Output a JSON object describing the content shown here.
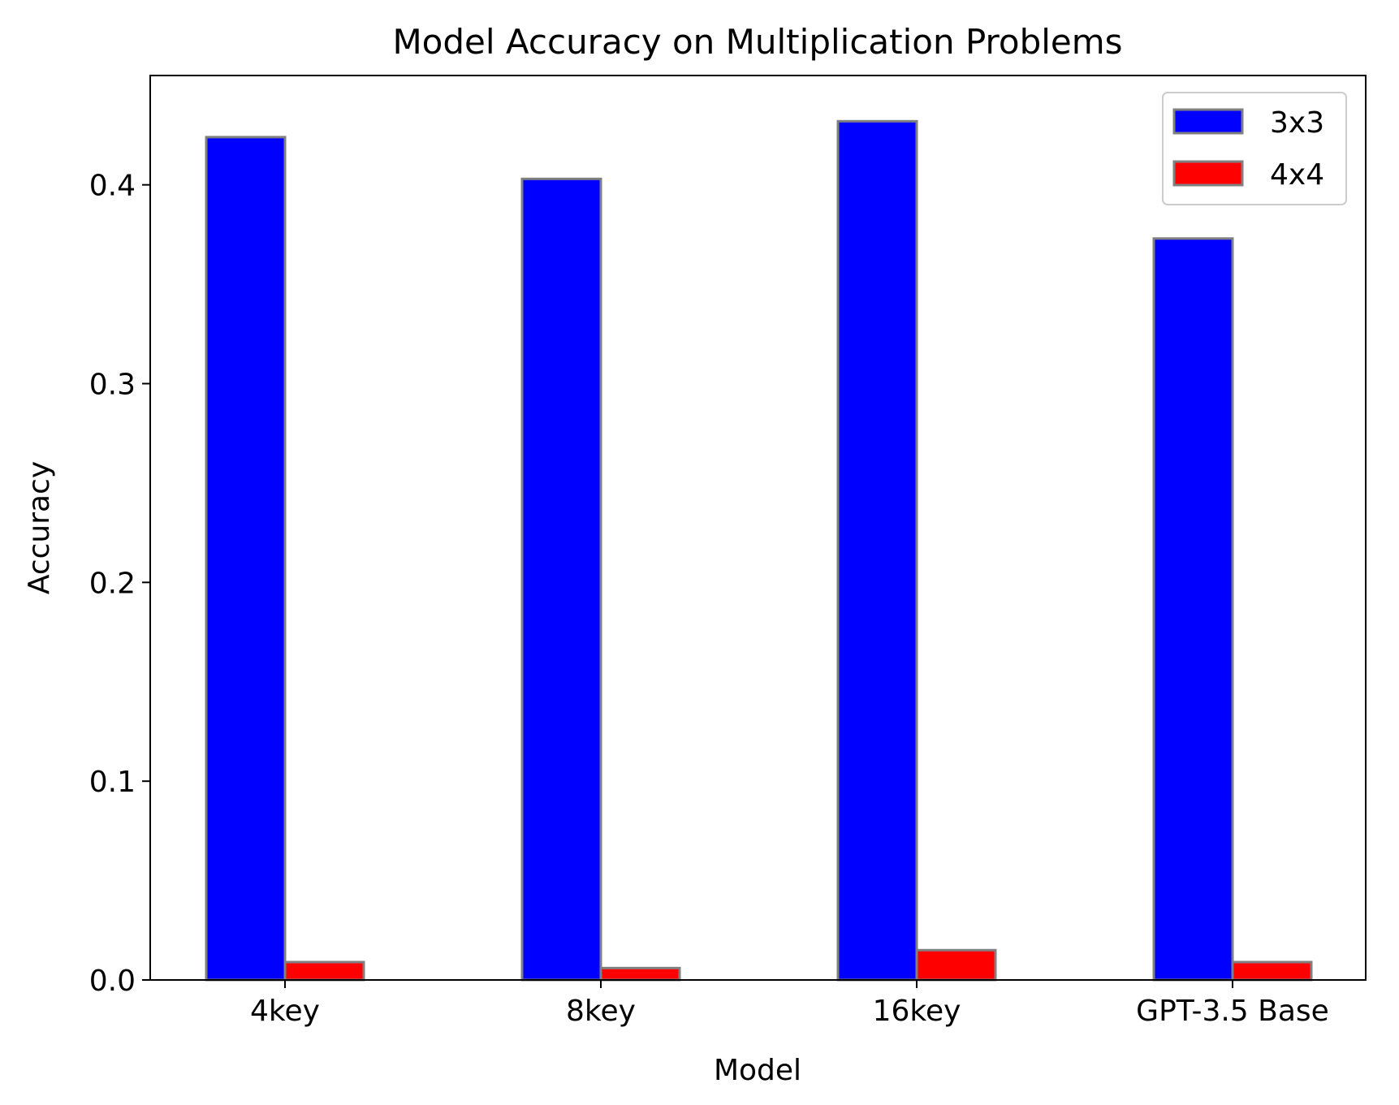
{
  "chart_data": {
    "type": "bar",
    "title": "Model Accuracy on Multiplication Problems",
    "xlabel": "Model",
    "ylabel": "Accuracy",
    "categories": [
      "4key",
      "8key",
      "16key",
      "GPT-3.5 Base"
    ],
    "series": [
      {
        "name": "3x3",
        "color": "#0000ff",
        "values": [
          0.424,
          0.403,
          0.432,
          0.373
        ]
      },
      {
        "name": "4x4",
        "color": "#ff0000",
        "values": [
          0.009,
          0.006,
          0.015,
          0.009
        ]
      }
    ],
    "ylim": [
      0,
      0.455
    ],
    "yticks": [
      0.0,
      0.1,
      0.2,
      0.3,
      0.4
    ],
    "ytick_labels": [
      "0.0",
      "0.1",
      "0.2",
      "0.3",
      "0.4"
    ],
    "bar_edge_color": "#808080",
    "grid": false,
    "legend_position": "top-right"
  }
}
